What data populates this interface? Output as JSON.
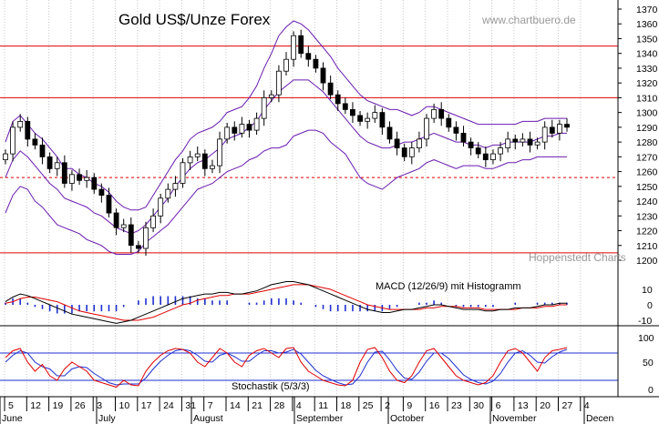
{
  "chart_data": {
    "type": "candlestick",
    "title": "Gold US$/Unze Forex",
    "watermark": "www.chartbuero.de",
    "source_note": "Hoppenstedt Charts",
    "price_axis": {
      "ylim": [
        1200,
        1370
      ],
      "ticks": [
        1200,
        1210,
        1220,
        1230,
        1240,
        1250,
        1260,
        1270,
        1280,
        1290,
        1300,
        1310,
        1320,
        1330,
        1340,
        1350,
        1360,
        1370
      ]
    },
    "horizontal_lines": [
      {
        "value": 1345,
        "style": "solid",
        "color": "#e00000"
      },
      {
        "value": 1310,
        "style": "solid",
        "color": "#e00000"
      },
      {
        "value": 1256,
        "style": "dashed",
        "color": "#e00000"
      },
      {
        "value": 1205,
        "style": "solid",
        "color": "#e00000"
      }
    ],
    "x_tick_labels": [
      "5",
      "12",
      "19",
      "26",
      "3",
      "10",
      "17",
      "24",
      "31",
      "7",
      "14",
      "21",
      "28",
      "4",
      "11",
      "18",
      "25",
      "2",
      "9",
      "16",
      "23",
      "30",
      "6",
      "13",
      "20",
      "27",
      "4"
    ],
    "month_labels": [
      "June",
      "July",
      "August",
      "September",
      "October",
      "November",
      "Decen"
    ],
    "closes": [
      1272,
      1290,
      1294,
      1282,
      1278,
      1270,
      1262,
      1266,
      1252,
      1258,
      1254,
      1256,
      1248,
      1244,
      1232,
      1222,
      1224,
      1210,
      1208,
      1222,
      1230,
      1242,
      1248,
      1252,
      1266,
      1270,
      1272,
      1262,
      1264,
      1282,
      1290,
      1286,
      1292,
      1288,
      1296,
      1310,
      1312,
      1328,
      1336,
      1352,
      1340,
      1336,
      1330,
      1320,
      1312,
      1306,
      1302,
      1298,
      1294,
      1296,
      1300,
      1290,
      1282,
      1276,
      1270,
      1276,
      1282,
      1296,
      1302,
      1296,
      1290,
      1286,
      1280,
      1276,
      1272,
      1268,
      1272,
      1276,
      1282,
      1280,
      1282,
      1278,
      1280,
      1290,
      1286,
      1292,
      1290
    ],
    "bollinger": {
      "upper": [
        1280,
        1294,
        1298,
        1292,
        1286,
        1282,
        1276,
        1270,
        1262,
        1262,
        1258,
        1256,
        1252,
        1250,
        1246,
        1240,
        1236,
        1234,
        1234,
        1236,
        1244,
        1252,
        1260,
        1268,
        1274,
        1282,
        1286,
        1288,
        1290,
        1294,
        1300,
        1302,
        1304,
        1310,
        1318,
        1330,
        1340,
        1352,
        1358,
        1362,
        1360,
        1356,
        1350,
        1344,
        1338,
        1330,
        1324,
        1318,
        1312,
        1308,
        1306,
        1304,
        1302,
        1302,
        1300,
        1298,
        1300,
        1304,
        1304,
        1302,
        1300,
        1298,
        1296,
        1294,
        1292,
        1292,
        1292,
        1292,
        1292,
        1292,
        1294,
        1294,
        1294,
        1296,
        1296,
        1296,
        1296
      ],
      "lower": [
        1232,
        1244,
        1250,
        1248,
        1240,
        1236,
        1230,
        1224,
        1222,
        1220,
        1218,
        1214,
        1212,
        1210,
        1206,
        1204,
        1204,
        1204,
        1206,
        1212,
        1216,
        1220,
        1224,
        1230,
        1236,
        1242,
        1248,
        1250,
        1252,
        1256,
        1260,
        1262,
        1264,
        1268,
        1270,
        1274,
        1276,
        1276,
        1278,
        1284,
        1286,
        1288,
        1288,
        1286,
        1280,
        1276,
        1272,
        1264,
        1256,
        1252,
        1250,
        1248,
        1252,
        1256,
        1258,
        1260,
        1262,
        1266,
        1268,
        1266,
        1264,
        1262,
        1264,
        1264,
        1264,
        1262,
        1262,
        1264,
        1266,
        1266,
        1268,
        1268,
        1270,
        1270,
        1270,
        1270,
        1270
      ],
      "middle": [
        1256,
        1268,
        1274,
        1270,
        1264,
        1258,
        1252,
        1248,
        1242,
        1240,
        1238,
        1236,
        1232,
        1230,
        1226,
        1222,
        1220,
        1218,
        1220,
        1224,
        1230,
        1236,
        1242,
        1250,
        1256,
        1262,
        1266,
        1268,
        1272,
        1276,
        1282,
        1284,
        1286,
        1290,
        1294,
        1302,
        1308,
        1314,
        1318,
        1322,
        1322,
        1322,
        1318,
        1314,
        1308,
        1302,
        1296,
        1290,
        1284,
        1280,
        1278,
        1276,
        1276,
        1278,
        1280,
        1280,
        1282,
        1284,
        1286,
        1284,
        1282,
        1280,
        1280,
        1278,
        1278,
        1276,
        1278,
        1278,
        1280,
        1280,
        1280,
        1280,
        1282,
        1284,
        1284,
        1286,
        1286
      ]
    },
    "macd_panel": {
      "label": "MACD (12/26/9) mit Histogramm",
      "ylim": [
        -15,
        20
      ],
      "ticks": [
        -10,
        0,
        10
      ],
      "macd": [
        2,
        5,
        7,
        6,
        4,
        2,
        0,
        -2,
        -4,
        -6,
        -7,
        -8,
        -9,
        -10,
        -11,
        -12,
        -11,
        -10,
        -8,
        -6,
        -4,
        -2,
        0,
        2,
        4,
        5,
        6,
        7,
        7,
        8,
        8,
        7,
        7,
        8,
        9,
        11,
        13,
        14,
        15,
        15,
        14,
        13,
        11,
        9,
        7,
        5,
        3,
        1,
        -1,
        -3,
        -4,
        -5,
        -5,
        -4,
        -3,
        -3,
        -2,
        -1,
        0,
        0,
        -1,
        -2,
        -3,
        -3,
        -3,
        -4,
        -4,
        -3,
        -3,
        -2,
        -2,
        -2,
        -1,
        0,
        0,
        1,
        1
      ],
      "signal": [
        1,
        2,
        4,
        5,
        5,
        4,
        3,
        2,
        0,
        -2,
        -4,
        -5,
        -6,
        -7,
        -8,
        -9,
        -10,
        -10,
        -10,
        -9,
        -8,
        -6,
        -4,
        -2,
        0,
        1,
        3,
        4,
        5,
        6,
        6,
        7,
        7,
        7,
        8,
        9,
        10,
        11,
        12,
        13,
        13,
        13,
        12,
        11,
        10,
        8,
        6,
        4,
        2,
        0,
        -1,
        -2,
        -3,
        -3,
        -3,
        -3,
        -3,
        -2,
        -2,
        -1,
        -1,
        -1,
        -2,
        -2,
        -2,
        -3,
        -3,
        -3,
        -3,
        -3,
        -2,
        -2,
        -2,
        -1,
        -1,
        0,
        0
      ]
    },
    "stochastic_panel": {
      "label": "Stochastik (5/3/3)",
      "ylim": [
        0,
        100
      ],
      "ticks": [
        0,
        50,
        100
      ],
      "levels": [
        20,
        80
      ],
      "k": [
        70,
        85,
        90,
        60,
        40,
        55,
        30,
        20,
        45,
        60,
        50,
        40,
        20,
        15,
        10,
        5,
        20,
        10,
        8,
        40,
        60,
        75,
        85,
        90,
        88,
        80,
        60,
        50,
        70,
        90,
        80,
        60,
        50,
        75,
        85,
        90,
        80,
        70,
        90,
        92,
        60,
        40,
        30,
        20,
        15,
        10,
        8,
        20,
        60,
        88,
        92,
        70,
        40,
        20,
        15,
        30,
        60,
        85,
        90,
        70,
        50,
        30,
        20,
        15,
        10,
        15,
        30,
        60,
        85,
        90,
        80,
        60,
        40,
        70,
        85,
        88,
        92
      ],
      "d": [
        60,
        75,
        85,
        80,
        60,
        50,
        45,
        30,
        30,
        45,
        50,
        48,
        35,
        25,
        15,
        10,
        12,
        12,
        12,
        25,
        45,
        62,
        75,
        85,
        88,
        85,
        75,
        62,
        60,
        75,
        80,
        72,
        62,
        62,
        75,
        85,
        85,
        80,
        82,
        88,
        78,
        60,
        42,
        30,
        22,
        15,
        10,
        12,
        30,
        60,
        82,
        84,
        65,
        42,
        25,
        22,
        38,
        62,
        80,
        80,
        68,
        50,
        32,
        22,
        15,
        12,
        18,
        35,
        60,
        80,
        85,
        75,
        60,
        58,
        72,
        82,
        88
      ]
    }
  }
}
